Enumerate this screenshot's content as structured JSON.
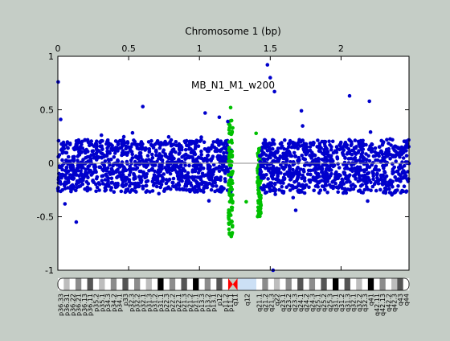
{
  "chart_data": {
    "type": "scatter",
    "title": "Chromosome 1 (bp)",
    "annotation": "MB_N1_M1_w200",
    "x_axis": {
      "position": "top",
      "range": [
        0,
        2.48
      ],
      "ticks": [
        0,
        0.5,
        1,
        1.5,
        2
      ],
      "tick_labels": [
        "0",
        "0.5",
        "1",
        "1.5",
        "2"
      ]
    },
    "y_axis": {
      "range": [
        -1,
        1
      ],
      "ticks": [
        1,
        0.5,
        0,
        -0.5,
        -1
      ],
      "tick_labels": [
        "1",
        "0.5",
        "0",
        "-0.5",
        "-1"
      ]
    },
    "zero_line": 0,
    "grid": false,
    "colors": {
      "main": "#0000cc",
      "highlight": "#00c000",
      "zero_line": "#8c8c8c"
    },
    "segments": [
      {
        "name": "left-arm",
        "x_range": [
          0.0,
          1.225
        ],
        "color": "main",
        "band": [
          -0.27,
          0.22
        ]
      },
      {
        "name": "green-left",
        "x_range": [
          1.205,
          1.235
        ],
        "color": "highlight",
        "band": [
          -0.7,
          0.4
        ]
      },
      {
        "name": "green-right",
        "x_range": [
          1.41,
          1.435
        ],
        "color": "highlight",
        "band": [
          -0.5,
          0.15
        ]
      },
      {
        "name": "right-arm",
        "x_range": [
          1.425,
          2.48
        ],
        "color": "main",
        "band": [
          -0.28,
          0.22
        ]
      }
    ],
    "outliers": [
      {
        "x": 0.002,
        "y": 0.76,
        "color": "main"
      },
      {
        "x": 0.02,
        "y": 0.41,
        "color": "main"
      },
      {
        "x": 0.05,
        "y": -0.38,
        "color": "main"
      },
      {
        "x": 0.13,
        "y": -0.55,
        "color": "main"
      },
      {
        "x": 0.6,
        "y": 0.53,
        "color": "main"
      },
      {
        "x": 1.04,
        "y": 0.47,
        "color": "main"
      },
      {
        "x": 1.14,
        "y": 0.43,
        "color": "main"
      },
      {
        "x": 1.2,
        "y": 0.39,
        "color": "main"
      },
      {
        "x": 1.22,
        "y": 0.52,
        "color": "highlight"
      },
      {
        "x": 1.33,
        "y": -0.36,
        "color": "highlight"
      },
      {
        "x": 1.4,
        "y": 0.28,
        "color": "highlight"
      },
      {
        "x": 1.48,
        "y": 0.92,
        "color": "main"
      },
      {
        "x": 1.5,
        "y": 0.8,
        "color": "main"
      },
      {
        "x": 1.53,
        "y": 0.67,
        "color": "main"
      },
      {
        "x": 1.52,
        "y": -1.0,
        "color": "main"
      },
      {
        "x": 1.68,
        "y": -0.44,
        "color": "main"
      },
      {
        "x": 2.06,
        "y": 0.63,
        "color": "main"
      },
      {
        "x": 2.2,
        "y": 0.58,
        "color": "main"
      },
      {
        "x": 1.72,
        "y": 0.49,
        "color": "main"
      }
    ]
  },
  "ideogram": {
    "centromere_color": "#ff0000",
    "heterochromatin_color": "#cce0f5",
    "bands": [
      {
        "label": "p36.33",
        "stain": "white"
      },
      {
        "label": "p36.31",
        "stain": "light"
      },
      {
        "label": "p36.22",
        "stain": "white"
      },
      {
        "label": "p36.21",
        "stain": "gray"
      },
      {
        "label": "p36.13",
        "stain": "white"
      },
      {
        "label": "p36.11",
        "stain": "dark"
      },
      {
        "label": "p35.2",
        "stain": "white"
      },
      {
        "label": "p35.1",
        "stain": "light"
      },
      {
        "label": "p34.3",
        "stain": "white"
      },
      {
        "label": "p34.2",
        "stain": "gray"
      },
      {
        "label": "p34.1",
        "stain": "white"
      },
      {
        "label": "p33",
        "stain": "dark"
      },
      {
        "label": "p32.3",
        "stain": "white"
      },
      {
        "label": "p32.2",
        "stain": "gray"
      },
      {
        "label": "p32.1",
        "stain": "white"
      },
      {
        "label": "p31.3",
        "stain": "light"
      },
      {
        "label": "p31.2",
        "stain": "white"
      },
      {
        "label": "p31.1",
        "stain": "black"
      },
      {
        "label": "p22.3",
        "stain": "white"
      },
      {
        "label": "p22.2",
        "stain": "gray"
      },
      {
        "label": "p22.1",
        "stain": "white"
      },
      {
        "label": "p21.3",
        "stain": "dark"
      },
      {
        "label": "p21.2",
        "stain": "white"
      },
      {
        "label": "p21.1",
        "stain": "black"
      },
      {
        "label": "p13.3",
        "stain": "white"
      },
      {
        "label": "p13.2",
        "stain": "gray"
      },
      {
        "label": "p13.1",
        "stain": "white"
      },
      {
        "label": "p12",
        "stain": "dark"
      },
      {
        "label": "p11.2",
        "stain": "white"
      },
      {
        "label": "p11.1",
        "stain": "cen"
      },
      {
        "label": "q11",
        "stain": "cen"
      },
      {
        "label": "q12",
        "stain": "var"
      },
      {
        "label": "q21.1",
        "stain": "white"
      },
      {
        "label": "q21.2",
        "stain": "gray"
      },
      {
        "label": "q21.3",
        "stain": "white"
      },
      {
        "label": "q22",
        "stain": "light"
      },
      {
        "label": "q23.1",
        "stain": "white"
      },
      {
        "label": "q23.2",
        "stain": "gray"
      },
      {
        "label": "q23.3",
        "stain": "white"
      },
      {
        "label": "q24.1",
        "stain": "dark"
      },
      {
        "label": "q24.2",
        "stain": "white"
      },
      {
        "label": "q24.3",
        "stain": "gray"
      },
      {
        "label": "q25.1",
        "stain": "white"
      },
      {
        "label": "q25.2",
        "stain": "dark"
      },
      {
        "label": "q25.3",
        "stain": "white"
      },
      {
        "label": "q31.1",
        "stain": "black"
      },
      {
        "label": "q31.2",
        "stain": "white"
      },
      {
        "label": "q31.3",
        "stain": "dark"
      },
      {
        "label": "q32.1",
        "stain": "white"
      },
      {
        "label": "q32.2",
        "stain": "light"
      },
      {
        "label": "q32.3",
        "stain": "white"
      },
      {
        "label": "q41",
        "stain": "black"
      },
      {
        "label": "q42.11",
        "stain": "white"
      },
      {
        "label": "q42.13",
        "stain": "gray"
      },
      {
        "label": "q42.2",
        "stain": "white"
      },
      {
        "label": "q42.3",
        "stain": "light"
      },
      {
        "label": "q43",
        "stain": "dark"
      },
      {
        "label": "q44",
        "stain": "white"
      }
    ]
  }
}
